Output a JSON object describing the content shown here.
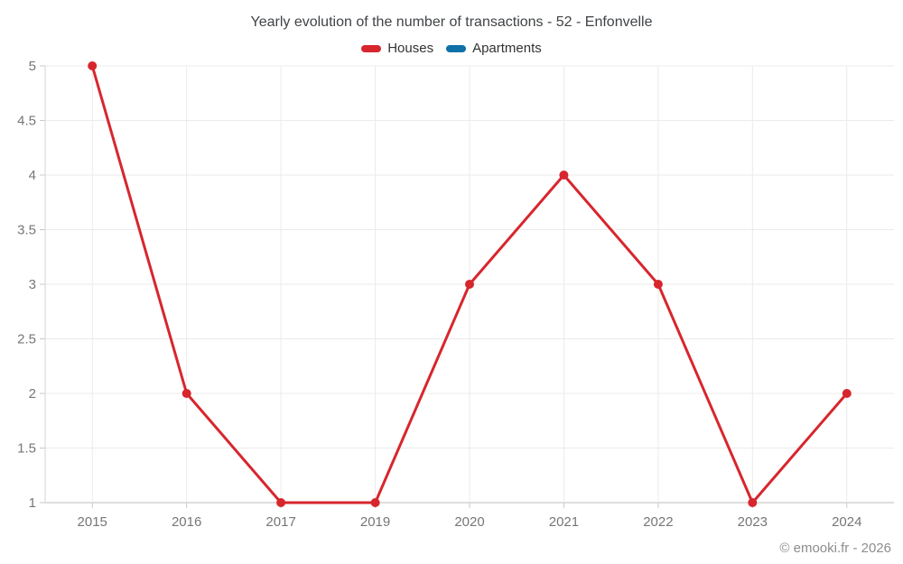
{
  "title": "Yearly evolution of the number of transactions - 52 - Enfonvelle",
  "legend": [
    {
      "label": "Houses",
      "color": "#d7262d"
    },
    {
      "label": "Apartments",
      "color": "#0e71a8"
    }
  ],
  "footer": {
    "copyright": "© emooki.fr - 2026"
  },
  "chart_data": {
    "type": "line",
    "title": "Yearly evolution of the number of transactions - 52 - Enfonvelle",
    "categories": [
      "2015",
      "2016",
      "2017",
      "2019",
      "2020",
      "2021",
      "2022",
      "2023",
      "2024"
    ],
    "series": [
      {
        "name": "Houses",
        "color": "#d7262d",
        "values": [
          5,
          2,
          1,
          1,
          3,
          4,
          3,
          1,
          2
        ]
      },
      {
        "name": "Apartments",
        "color": "#0e71a8",
        "values": []
      }
    ],
    "xlabel": "",
    "ylabel": "",
    "ylim": [
      1,
      5
    ],
    "yticks": [
      1,
      1.5,
      2,
      2.5,
      3,
      3.5,
      4,
      4.5,
      5
    ],
    "grid": true,
    "legend_position": "top",
    "marker": "circle"
  }
}
